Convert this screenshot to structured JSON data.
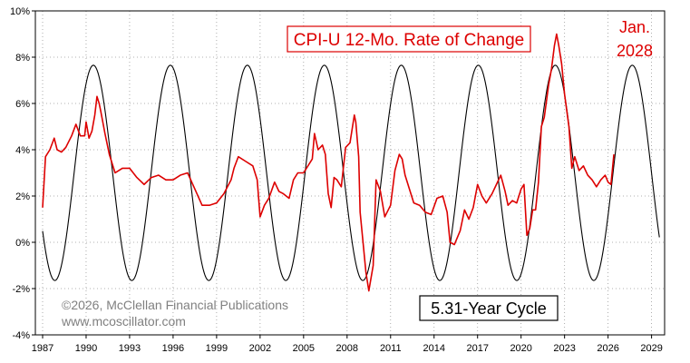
{
  "chart_data": {
    "type": "line",
    "title": "CPI-U 12-Mo. Rate of Change",
    "xlabel": "",
    "ylabel": "",
    "xlim": [
      1986.5,
      2029.9
    ],
    "ylim": [
      -4,
      10
    ],
    "x_ticks": [
      "1987",
      "1990",
      "1993",
      "1996",
      "1999",
      "2002",
      "2005",
      "2008",
      "2011",
      "2014",
      "2017",
      "2020",
      "2023",
      "2026",
      "2029"
    ],
    "y_ticks": [
      "10%",
      "8%",
      "6%",
      "4%",
      "2%",
      "0%",
      "-2%",
      "-4%"
    ],
    "grid": true,
    "legend": "none",
    "colors": {
      "cpi": "#dd0000",
      "cycle": "#000000",
      "grid": "#999999",
      "background": "#ffffff"
    },
    "series": [
      {
        "name": "CPI-U 12-Mo. Rate of Change",
        "color": "#dd0000",
        "x": [
          1987.0,
          1987.2,
          1987.5,
          1987.8,
          1988.0,
          1988.3,
          1988.6,
          1989.0,
          1989.3,
          1989.6,
          1989.9,
          1990.0,
          1990.2,
          1990.4,
          1990.6,
          1990.75,
          1990.9,
          1991.0,
          1991.3,
          1991.6,
          1992.0,
          1992.5,
          1993.0,
          1993.5,
          1994.0,
          1994.5,
          1995.0,
          1995.5,
          1996.0,
          1996.5,
          1997.0,
          1997.5,
          1998.0,
          1998.5,
          1999.0,
          1999.5,
          2000.0,
          2000.2,
          2000.5,
          2001.0,
          2001.5,
          2001.8,
          2002.0,
          2002.3,
          2002.6,
          2003.0,
          2003.3,
          2003.6,
          2004.0,
          2004.3,
          2004.6,
          2005.0,
          2005.3,
          2005.6,
          2005.75,
          2006.0,
          2006.3,
          2006.5,
          2006.7,
          2006.9,
          2007.1,
          2007.3,
          2007.6,
          2007.9,
          2008.2,
          2008.5,
          2008.6,
          2008.8,
          2008.9,
          2009.1,
          2009.3,
          2009.5,
          2009.8,
          2010.0,
          2010.3,
          2010.6,
          2011.0,
          2011.3,
          2011.6,
          2011.8,
          2012.0,
          2012.3,
          2012.6,
          2013.0,
          2013.4,
          2013.8,
          2014.2,
          2014.6,
          2014.9,
          2015.1,
          2015.4,
          2015.8,
          2016.1,
          2016.4,
          2016.7,
          2017.0,
          2017.3,
          2017.6,
          2018.0,
          2018.3,
          2018.6,
          2018.9,
          2019.1,
          2019.4,
          2019.7,
          2020.0,
          2020.2,
          2020.4,
          2020.6,
          2020.8,
          2021.0,
          2021.2,
          2021.4,
          2021.6,
          2021.9,
          2022.1,
          2022.3,
          2022.45,
          2022.6,
          2022.8,
          2023.0,
          2023.3,
          2023.5,
          2023.7,
          2024.0,
          2024.3,
          2024.6,
          2024.9,
          2025.2,
          2025.5,
          2025.8,
          2026.0,
          2026.2,
          2026.4
        ],
        "y": [
          1.5,
          3.7,
          4.0,
          4.5,
          4.0,
          3.9,
          4.1,
          4.6,
          5.1,
          4.6,
          4.6,
          5.2,
          4.5,
          4.8,
          5.5,
          6.3,
          6.0,
          5.7,
          4.7,
          3.8,
          3.0,
          3.2,
          3.2,
          2.8,
          2.5,
          2.8,
          2.9,
          2.7,
          2.7,
          2.9,
          3.0,
          2.3,
          1.6,
          1.6,
          1.7,
          2.1,
          2.7,
          3.2,
          3.7,
          3.5,
          3.3,
          2.7,
          1.1,
          1.6,
          1.9,
          2.6,
          2.2,
          2.1,
          1.9,
          2.7,
          3.0,
          3.0,
          3.3,
          3.6,
          4.7,
          4.0,
          4.2,
          3.8,
          2.1,
          1.5,
          2.8,
          2.7,
          2.4,
          4.1,
          4.3,
          5.5,
          5.2,
          3.7,
          1.3,
          0.0,
          -1.3,
          -2.1,
          -1.0,
          2.7,
          2.2,
          1.1,
          1.6,
          3.1,
          3.8,
          3.6,
          2.9,
          2.3,
          1.7,
          1.6,
          1.3,
          1.2,
          1.9,
          2.0,
          1.3,
          0.0,
          -0.1,
          0.5,
          1.4,
          1.0,
          1.5,
          2.5,
          2.0,
          1.7,
          2.1,
          2.5,
          2.9,
          2.2,
          1.6,
          1.8,
          1.7,
          2.3,
          2.5,
          0.3,
          0.6,
          1.4,
          1.4,
          2.6,
          5.0,
          5.4,
          6.8,
          7.5,
          8.5,
          9.0,
          8.5,
          7.7,
          6.4,
          5.0,
          3.2,
          3.7,
          3.1,
          3.3,
          2.9,
          2.7,
          2.4,
          2.7,
          2.9,
          2.6,
          2.5,
          3.8
        ]
      },
      {
        "name": "5.31-Year Cycle",
        "color": "#000000",
        "period_years": 5.31,
        "amplitude": 4.65,
        "center": 3.0,
        "peak_year": 1990.5,
        "x_start": 1987.0,
        "x_end": 2029.55
      }
    ],
    "annotations": [
      {
        "text": "Jan.",
        "color": "#dd0000"
      },
      {
        "text": "2028",
        "color": "#dd0000"
      },
      {
        "text": "5.31-Year Cycle",
        "color": "#000000"
      },
      {
        "text": "©2026, McClellan Financial Publications",
        "color": "#808080"
      },
      {
        "text": "www.mcoscillator.com",
        "color": "#808080"
      }
    ]
  }
}
